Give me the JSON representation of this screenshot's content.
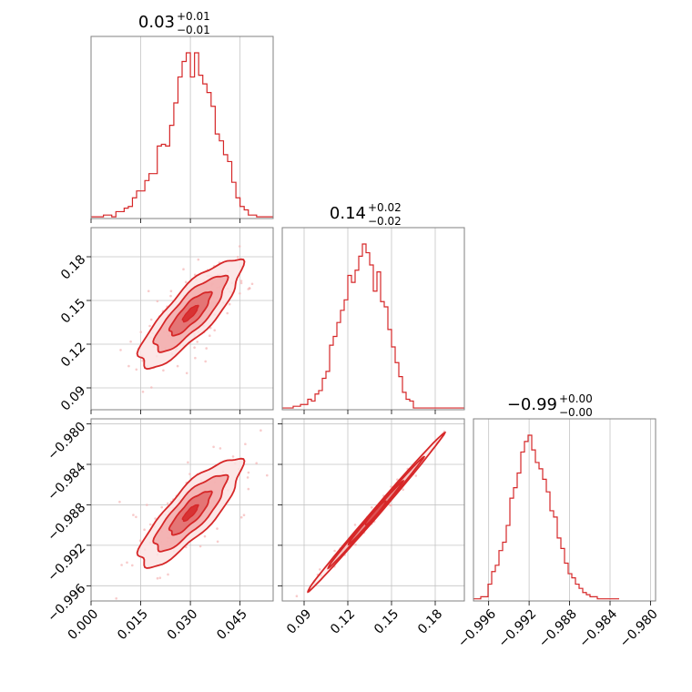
{
  "colors": {
    "accent": "#d62728",
    "fill_outer": "#fbe3e3",
    "fill_mid": "#f2aaaa",
    "fill_inner": "#e06a6a",
    "points": "#f5b5b5",
    "frame": "#808080",
    "grid": "#c4c4c4"
  },
  "chart_data": {
    "type": "corner",
    "grid": true,
    "parameters": [
      {
        "title": {
          "main": "0.03",
          "sup": "+0.01",
          "sub": "−0.01"
        },
        "range": [
          0.0,
          0.055
        ],
        "ticks": [
          0.0,
          0.015,
          0.03,
          0.045
        ],
        "tick_labels": [
          "0.000",
          "0.015",
          "0.030",
          "0.045"
        ],
        "histogram": {
          "bin_edges_start": 0.0,
          "bin_width": 0.00125,
          "counts": [
            1,
            1,
            1,
            2,
            2,
            1,
            4,
            4,
            6,
            7,
            12,
            16,
            16,
            22,
            26,
            26,
            42,
            43,
            42,
            54,
            67,
            82,
            91,
            96,
            82,
            96,
            83,
            78,
            73,
            65,
            49,
            45,
            37,
            33,
            21,
            12,
            7,
            5,
            2,
            2,
            1,
            1,
            1,
            1
          ]
        }
      },
      {
        "title": {
          "main": "0.14",
          "sup": "+0.02",
          "sub": "−0.02"
        },
        "range": [
          0.075,
          0.2
        ],
        "ticks": [
          0.09,
          0.12,
          0.15,
          0.18
        ],
        "tick_labels": [
          "0.09",
          "0.12",
          "0.15",
          "0.18"
        ],
        "histogram": {
          "bin_edges_start": 0.075,
          "bin_width": 0.0025,
          "counts": [
            1,
            1,
            1,
            2,
            2,
            3,
            3,
            6,
            5,
            9,
            11,
            18,
            22,
            37,
            42,
            50,
            57,
            63,
            77,
            73,
            80,
            88,
            95,
            90,
            83,
            68,
            79,
            62,
            59,
            46,
            36,
            27,
            19,
            10,
            6,
            5,
            1,
            1,
            1,
            1,
            1,
            1,
            1,
            1,
            1,
            1,
            1,
            1,
            1,
            1
          ]
        }
      },
      {
        "title": {
          "main": "−0.99",
          "sup": "+0.00",
          "sub": "−0.00"
        },
        "range": [
          -0.9975,
          -0.9795
        ],
        "ticks": [
          -0.996,
          -0.992,
          -0.988,
          -0.984,
          -0.98
        ],
        "tick_labels": [
          "−0.996",
          "−0.992",
          "−0.988",
          "−0.984",
          "−0.980"
        ],
        "histogram": {
          "bin_edges_start": -0.9975,
          "bin_width": 0.00036,
          "counts": [
            1,
            1,
            2,
            2,
            8,
            14,
            17,
            24,
            28,
            36,
            49,
            54,
            61,
            71,
            76,
            79,
            72,
            66,
            63,
            58,
            52,
            43,
            40,
            30,
            25,
            18,
            13,
            11,
            8,
            6,
            4,
            3,
            2,
            2,
            1,
            1,
            1,
            1,
            1,
            1
          ]
        }
      }
    ],
    "pairs": [
      {
        "x_param": 0,
        "y_param": 1,
        "correlation": 0.85
      },
      {
        "x_param": 0,
        "y_param": 2,
        "correlation": 0.85
      },
      {
        "x_param": 1,
        "y_param": 2,
        "correlation": 0.995
      }
    ]
  }
}
